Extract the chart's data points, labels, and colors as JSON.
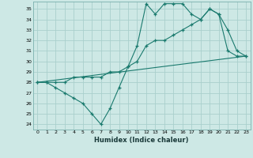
{
  "title": "",
  "xlabel": "Humidex (Indice chaleur)",
  "ylabel": "",
  "bg_color": "#cde8e5",
  "grid_color": "#aacfcc",
  "line_color": "#1a7a6e",
  "xlim": [
    -0.5,
    23.5
  ],
  "ylim": [
    23.5,
    35.7
  ],
  "xticks": [
    0,
    1,
    2,
    3,
    4,
    5,
    6,
    7,
    8,
    9,
    10,
    11,
    12,
    13,
    14,
    15,
    16,
    17,
    18,
    19,
    20,
    21,
    22,
    23
  ],
  "yticks": [
    24,
    25,
    26,
    27,
    28,
    29,
    30,
    31,
    32,
    33,
    34,
    35
  ],
  "series1_x": [
    0,
    1,
    2,
    3,
    4,
    5,
    6,
    7,
    8,
    9,
    10,
    11,
    12,
    13,
    14,
    15,
    16,
    17,
    18,
    19,
    20,
    21,
    22,
    23
  ],
  "series1_y": [
    28,
    28,
    27.5,
    27,
    26.5,
    26,
    25,
    24,
    25.5,
    27.5,
    29.5,
    31.5,
    35.5,
    34.5,
    35.5,
    35.5,
    35.5,
    34.5,
    34,
    35,
    34.5,
    31,
    30.5,
    30.5
  ],
  "series2_x": [
    0,
    1,
    2,
    3,
    4,
    5,
    6,
    7,
    8,
    9,
    10,
    11,
    12,
    13,
    14,
    15,
    16,
    17,
    18,
    19,
    20,
    21,
    22,
    23
  ],
  "series2_y": [
    28,
    28,
    28,
    28,
    28.5,
    28.5,
    28.5,
    28.5,
    29,
    29,
    29.5,
    30,
    31.5,
    32,
    32,
    32.5,
    33,
    33.5,
    34,
    35,
    34.5,
    33,
    31,
    30.5
  ],
  "series3_x": [
    0,
    23
  ],
  "series3_y": [
    28,
    30.5
  ]
}
